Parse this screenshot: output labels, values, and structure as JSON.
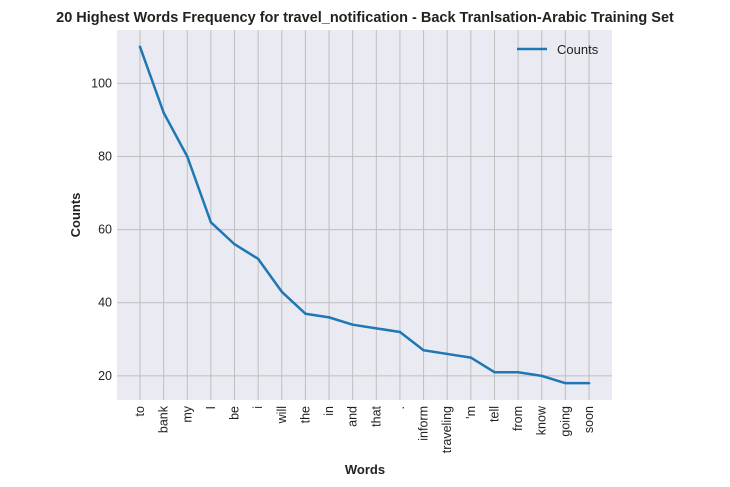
{
  "chart_data": {
    "type": "line",
    "title": "20 Highest Words Frequency for travel_notification - Back Tranlsation-Arabic Training Set",
    "xlabel": "Words",
    "ylabel": "Counts",
    "categories": [
      "to",
      "bank",
      "my",
      "I",
      "be",
      "i",
      "will",
      "the",
      "in",
      "and",
      "that",
      ".",
      "inform",
      "traveling",
      "'m",
      "tell",
      "from",
      "know",
      "going",
      "soon"
    ],
    "series": [
      {
        "name": "Counts",
        "color": "#1f77b4",
        "values": [
          110,
          92,
          80,
          62,
          56,
          52,
          43,
          37,
          36,
          34,
          33,
          32,
          27,
          26,
          25,
          21,
          21,
          20,
          18,
          18
        ]
      }
    ],
    "yticks": [
      20,
      40,
      60,
      80,
      100
    ],
    "ylim": [
      13.4,
      114.6
    ],
    "grid": true,
    "legend_position": "top-right",
    "colors": {
      "background": "#eaeaf2",
      "grid": "#bfbfbf"
    }
  }
}
